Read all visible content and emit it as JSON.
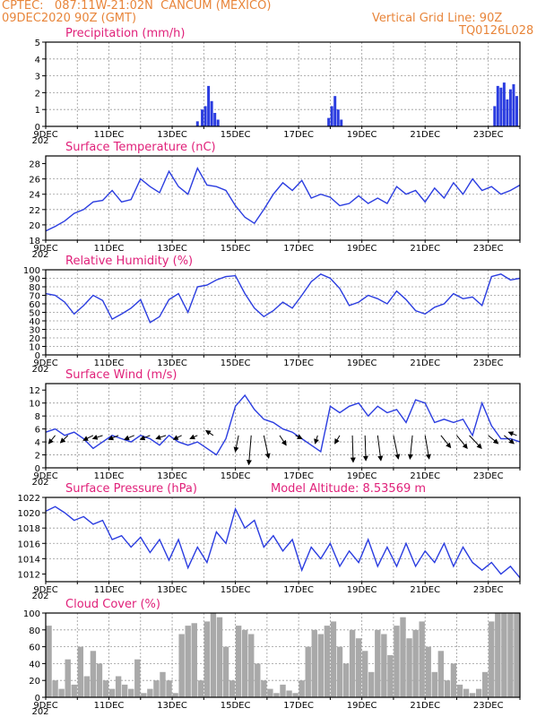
{
  "header": {
    "left_line1": "CPTEC:   087:11W-21:02N  CANCUM (MEXICO)",
    "left_line2": "09DEC2020 90Z (GMT)",
    "right_line1": "Vertical Grid Line: 90Z",
    "right_line2": "TQ0126L028"
  },
  "colors": {
    "series": "#2b3de0",
    "cloud": "#a9a9a9",
    "title": "#e0217a",
    "header": "#e8853a",
    "grid": "#9a9a9a"
  },
  "x_ticks": [
    "9DEC",
    "11DEC",
    "13DEC",
    "15DEC",
    "17DEC",
    "19DEC",
    "21DEC",
    "23DEC"
  ],
  "year_stub": "202",
  "chart_data": [
    {
      "id": "precip",
      "type": "bar",
      "title": "Precipitation (mm/h)",
      "ylim": [
        0,
        5
      ],
      "yticks": [
        "0",
        "1",
        "2",
        "3",
        "4",
        "5"
      ],
      "grid": true,
      "x_range_days": [
        9,
        24
      ],
      "x": [
        13.8,
        13.95,
        14.05,
        14.15,
        14.25,
        14.35,
        14.45,
        17.95,
        18.05,
        18.15,
        18.25,
        18.35,
        23.2,
        23.3,
        23.4,
        23.5,
        23.6,
        23.7,
        23.8,
        23.9
      ],
      "values": [
        0.3,
        1.0,
        1.2,
        2.4,
        1.5,
        0.8,
        0.4,
        0.5,
        1.2,
        1.8,
        1.0,
        0.4,
        1.2,
        2.4,
        2.3,
        2.6,
        1.6,
        2.2,
        2.5,
        1.8
      ]
    },
    {
      "id": "temp",
      "type": "line",
      "title": "Surface Temperature (nC)",
      "ylim": [
        18,
        29
      ],
      "yticks": [
        "18",
        "20",
        "22",
        "24",
        "26",
        "28"
      ],
      "grid": true,
      "x": [
        9.0,
        9.3,
        9.6,
        9.9,
        10.2,
        10.5,
        10.8,
        11.1,
        11.4,
        11.7,
        12.0,
        12.3,
        12.6,
        12.9,
        13.2,
        13.5,
        13.8,
        14.1,
        14.4,
        14.7,
        15.0,
        15.3,
        15.6,
        15.9,
        16.2,
        16.5,
        16.8,
        17.1,
        17.4,
        17.7,
        18.0,
        18.3,
        18.6,
        18.9,
        19.2,
        19.5,
        19.8,
        20.1,
        20.4,
        20.7,
        21.0,
        21.3,
        21.6,
        21.9,
        22.2,
        22.5,
        22.8,
        23.1,
        23.4,
        23.7,
        24.0
      ],
      "y": [
        19.2,
        19.8,
        20.5,
        21.5,
        22.0,
        23.0,
        23.2,
        24.5,
        23.0,
        23.3,
        26.0,
        25.0,
        24.2,
        27.0,
        25.0,
        24.0,
        27.4,
        25.2,
        25.0,
        24.5,
        22.5,
        21.0,
        20.2,
        22.0,
        24.0,
        25.5,
        24.5,
        25.8,
        23.5,
        24.0,
        23.6,
        22.5,
        22.8,
        23.8,
        22.8,
        23.5,
        22.8,
        25.0,
        24.0,
        24.5,
        23.0,
        24.8,
        23.5,
        25.5,
        24.0,
        26.0,
        24.5,
        25.0,
        24.0,
        24.5,
        25.2
      ]
    },
    {
      "id": "rh",
      "type": "line",
      "title": "Relative Humidity (%)",
      "ylim": [
        0,
        100
      ],
      "yticks": [
        "0",
        "10",
        "20",
        "30",
        "40",
        "50",
        "60",
        "70",
        "80",
        "90",
        "100"
      ],
      "grid": true,
      "x": [
        9.0,
        9.3,
        9.6,
        9.9,
        10.2,
        10.5,
        10.8,
        11.1,
        11.4,
        11.7,
        12.0,
        12.3,
        12.6,
        12.9,
        13.2,
        13.5,
        13.8,
        14.1,
        14.4,
        14.7,
        15.0,
        15.3,
        15.6,
        15.9,
        16.2,
        16.5,
        16.8,
        17.1,
        17.4,
        17.7,
        18.0,
        18.3,
        18.6,
        18.9,
        19.2,
        19.5,
        19.8,
        20.1,
        20.4,
        20.7,
        21.0,
        21.3,
        21.6,
        21.9,
        22.2,
        22.5,
        22.8,
        23.1,
        23.4,
        23.7,
        24.0
      ],
      "y": [
        72,
        70,
        62,
        48,
        58,
        70,
        64,
        42,
        48,
        55,
        65,
        38,
        45,
        65,
        72,
        50,
        80,
        82,
        88,
        92,
        93,
        72,
        55,
        45,
        52,
        62,
        55,
        70,
        86,
        95,
        90,
        78,
        58,
        62,
        70,
        66,
        60,
        75,
        65,
        52,
        48,
        56,
        60,
        72,
        66,
        68,
        58,
        92,
        95,
        88,
        90
      ]
    },
    {
      "id": "wind",
      "type": "line",
      "title": "Surface Wind (m/s)",
      "ylim": [
        0,
        13
      ],
      "yticks": [
        "0",
        "2",
        "4",
        "6",
        "8",
        "10",
        "12"
      ],
      "grid": true,
      "x": [
        9.0,
        9.3,
        9.6,
        9.9,
        10.2,
        10.5,
        10.8,
        11.1,
        11.4,
        11.7,
        12.0,
        12.3,
        12.6,
        12.9,
        13.2,
        13.5,
        13.8,
        14.1,
        14.4,
        14.7,
        15.0,
        15.3,
        15.6,
        15.9,
        16.2,
        16.5,
        16.8,
        17.1,
        17.4,
        17.7,
        18.0,
        18.3,
        18.6,
        18.9,
        19.2,
        19.5,
        19.8,
        20.1,
        20.4,
        20.7,
        21.0,
        21.3,
        21.6,
        21.9,
        22.2,
        22.5,
        22.8,
        23.1,
        23.4,
        23.7,
        24.0
      ],
      "y": [
        5.5,
        6.0,
        5.0,
        5.5,
        4.5,
        3.0,
        4.0,
        5.0,
        4.5,
        4.0,
        5.0,
        4.5,
        3.5,
        5.0,
        4.0,
        3.5,
        4.0,
        3.0,
        2.0,
        4.5,
        9.5,
        11.2,
        9.0,
        7.5,
        7.0,
        6.0,
        5.5,
        4.5,
        3.5,
        2.5,
        9.5,
        8.5,
        9.5,
        10.0,
        8.0,
        9.5,
        8.5,
        9.0,
        7.0,
        10.5,
        10.0,
        7.0,
        7.5,
        7.0,
        7.5,
        5.0,
        10.0,
        6.5,
        4.5,
        4.5,
        4.0
      ],
      "arrows": [
        {
          "x": 9.3,
          "dx": -0.8,
          "dy": -1.0
        },
        {
          "x": 9.7,
          "dx": -0.9,
          "dy": -0.9
        },
        {
          "x": 10.5,
          "dx": -1.2,
          "dy": -0.6
        },
        {
          "x": 10.8,
          "dx": -1.2,
          "dy": -0.4
        },
        {
          "x": 11.3,
          "dx": -1.2,
          "dy": -0.5
        },
        {
          "x": 11.8,
          "dx": -1.2,
          "dy": -0.5
        },
        {
          "x": 12.3,
          "dx": -1.2,
          "dy": -0.5
        },
        {
          "x": 12.8,
          "dx": -1.2,
          "dy": -0.4
        },
        {
          "x": 13.3,
          "dx": -1.0,
          "dy": -0.5
        },
        {
          "x": 13.8,
          "dx": -0.9,
          "dy": -0.4
        },
        {
          "x": 14.3,
          "dx": -0.9,
          "dy": 0.6
        },
        {
          "x": 15.1,
          "dx": -0.4,
          "dy": -2.0
        },
        {
          "x": 15.5,
          "dx": -0.3,
          "dy": -3.6
        },
        {
          "x": 15.9,
          "dx": 0.6,
          "dy": -2.8
        },
        {
          "x": 16.4,
          "dx": 0.8,
          "dy": -1.2
        },
        {
          "x": 16.9,
          "dx": 0.8,
          "dy": -0.4
        },
        {
          "x": 17.6,
          "dx": -0.3,
          "dy": -1.0
        },
        {
          "x": 18.3,
          "dx": -0.6,
          "dy": -1.0
        },
        {
          "x": 18.7,
          "dx": 0.1,
          "dy": -3.3
        },
        {
          "x": 19.1,
          "dx": 0.1,
          "dy": -3.1
        },
        {
          "x": 19.5,
          "dx": 0.4,
          "dy": -3.1
        },
        {
          "x": 20.0,
          "dx": 0.6,
          "dy": -2.9
        },
        {
          "x": 20.6,
          "dx": -0.3,
          "dy": -2.9
        },
        {
          "x": 21.0,
          "dx": 0.5,
          "dy": -2.9
        },
        {
          "x": 21.5,
          "dx": 1.2,
          "dy": -1.5
        },
        {
          "x": 22.0,
          "dx": 1.3,
          "dy": -1.6
        },
        {
          "x": 22.4,
          "dx": 1.5,
          "dy": -1.6
        },
        {
          "x": 23.0,
          "dx": 1.2,
          "dy": -1.0
        },
        {
          "x": 23.5,
          "dx": 1.2,
          "dy": -1.0
        },
        {
          "x": 23.9,
          "dx": -1.0,
          "dy": 0.4
        }
      ]
    },
    {
      "id": "pressure",
      "type": "line",
      "title": "Surface Pressure (hPa)",
      "annotation": "Model Altitude: 8.53569 m",
      "ylim": [
        1011,
        1022
      ],
      "yticks": [
        "1012",
        "1014",
        "1016",
        "1018",
        "1020",
        "1022"
      ],
      "grid": true,
      "x": [
        9.0,
        9.3,
        9.6,
        9.9,
        10.2,
        10.5,
        10.8,
        11.1,
        11.4,
        11.7,
        12.0,
        12.3,
        12.6,
        12.9,
        13.2,
        13.5,
        13.8,
        14.1,
        14.4,
        14.7,
        15.0,
        15.3,
        15.6,
        15.9,
        16.2,
        16.5,
        16.8,
        17.1,
        17.4,
        17.7,
        18.0,
        18.3,
        18.6,
        18.9,
        19.2,
        19.5,
        19.8,
        20.1,
        20.4,
        20.7,
        21.0,
        21.3,
        21.6,
        21.9,
        22.2,
        22.5,
        22.8,
        23.1,
        23.4,
        23.7,
        24.0
      ],
      "y": [
        1020.2,
        1020.8,
        1020.0,
        1019.0,
        1019.5,
        1018.5,
        1019.0,
        1016.5,
        1017.0,
        1015.5,
        1016.8,
        1014.8,
        1016.5,
        1013.8,
        1016.5,
        1012.8,
        1015.5,
        1013.5,
        1017.5,
        1016.0,
        1020.5,
        1018.0,
        1019.0,
        1015.5,
        1017.0,
        1015.0,
        1016.5,
        1012.5,
        1015.5,
        1014.0,
        1016.0,
        1013.0,
        1015.0,
        1013.5,
        1016.5,
        1013.0,
        1015.5,
        1013.0,
        1016.0,
        1013.0,
        1015.0,
        1013.5,
        1016.0,
        1013.0,
        1015.5,
        1013.5,
        1012.5,
        1013.5,
        1012.0,
        1013.0,
        1011.5
      ]
    },
    {
      "id": "cloud",
      "type": "bar",
      "title": "Cloud Cover (%)",
      "ylim": [
        0,
        100
      ],
      "yticks": [
        "0",
        "20",
        "40",
        "60",
        "80",
        "100"
      ],
      "grid": true,
      "x": [
        9.1,
        9.3,
        9.5,
        9.7,
        9.9,
        10.1,
        10.3,
        10.5,
        10.7,
        10.9,
        11.1,
        11.3,
        11.5,
        11.7,
        11.9,
        12.1,
        12.3,
        12.5,
        12.7,
        12.9,
        13.1,
        13.3,
        13.5,
        13.7,
        13.9,
        14.1,
        14.3,
        14.5,
        14.7,
        14.9,
        15.1,
        15.3,
        15.5,
        15.7,
        15.9,
        16.1,
        16.3,
        16.5,
        16.7,
        16.9,
        17.1,
        17.3,
        17.5,
        17.7,
        17.9,
        18.1,
        18.3,
        18.5,
        18.7,
        18.9,
        19.1,
        19.3,
        19.5,
        19.7,
        19.9,
        20.1,
        20.3,
        20.5,
        20.7,
        20.9,
        21.1,
        21.3,
        21.5,
        21.7,
        21.9,
        22.1,
        22.3,
        22.5,
        22.7,
        22.9,
        23.1,
        23.3,
        23.5,
        23.7,
        23.9
      ],
      "values": [
        85,
        20,
        10,
        45,
        15,
        60,
        25,
        55,
        40,
        20,
        10,
        25,
        15,
        10,
        45,
        5,
        10,
        20,
        30,
        20,
        5,
        75,
        85,
        88,
        20,
        90,
        100,
        95,
        60,
        20,
        85,
        80,
        75,
        40,
        20,
        10,
        5,
        15,
        8,
        5,
        20,
        60,
        80,
        75,
        85,
        90,
        60,
        40,
        80,
        70,
        55,
        30,
        80,
        75,
        50,
        85,
        95,
        70,
        80,
        90,
        60,
        30,
        55,
        20,
        40,
        15,
        10,
        5,
        10,
        30,
        90,
        100,
        100,
        100,
        100
      ]
    }
  ]
}
